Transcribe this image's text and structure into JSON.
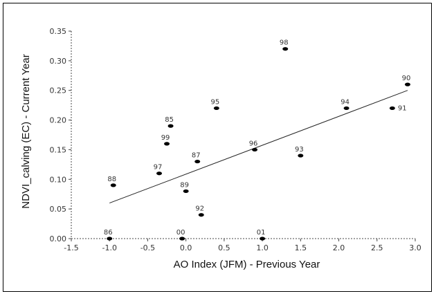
{
  "chart_data": {
    "type": "scatter",
    "title": "",
    "xlabel": "AO Index  (JFM) - Previous Year",
    "ylabel": "NDVI_calving (EC) - Current Year",
    "xlim": [
      -1.5,
      3.0
    ],
    "ylim": [
      0.0,
      0.35
    ],
    "x_ticks": [
      "-1.5",
      "-1.0",
      "-0.5",
      "0.0",
      "0.5",
      "1.0",
      "1.5",
      "2.0",
      "2.5",
      "3.0"
    ],
    "y_ticks": [
      "0.00",
      "0.05",
      "0.10",
      "0.15",
      "0.20",
      "0.25",
      "0.30",
      "0.35"
    ],
    "grid": false,
    "legend": "none",
    "point_color": "#000000",
    "trendline": {
      "x": [
        -1.0,
        2.9
      ],
      "y": [
        0.06,
        0.25
      ]
    },
    "points": [
      {
        "label": "86",
        "x": -1.0,
        "y": 0.0
      },
      {
        "label": "88",
        "x": -0.95,
        "y": 0.09
      },
      {
        "label": "97",
        "x": -0.35,
        "y": 0.11
      },
      {
        "label": "99",
        "x": -0.25,
        "y": 0.16
      },
      {
        "label": "85",
        "x": -0.2,
        "y": 0.19
      },
      {
        "label": "00",
        "x": -0.05,
        "y": 0.0
      },
      {
        "label": "89",
        "x": 0.0,
        "y": 0.08
      },
      {
        "label": "87",
        "x": 0.15,
        "y": 0.13
      },
      {
        "label": "92",
        "x": 0.2,
        "y": 0.04
      },
      {
        "label": "95",
        "x": 0.4,
        "y": 0.22
      },
      {
        "label": "96",
        "x": 0.9,
        "y": 0.15
      },
      {
        "label": "01",
        "x": 1.0,
        "y": 0.0
      },
      {
        "label": "98",
        "x": 1.3,
        "y": 0.32
      },
      {
        "label": "93",
        "x": 1.5,
        "y": 0.14
      },
      {
        "label": "94",
        "x": 2.1,
        "y": 0.22
      },
      {
        "label": "91",
        "x": 2.7,
        "y": 0.22
      },
      {
        "label": "90",
        "x": 2.9,
        "y": 0.26
      }
    ]
  }
}
